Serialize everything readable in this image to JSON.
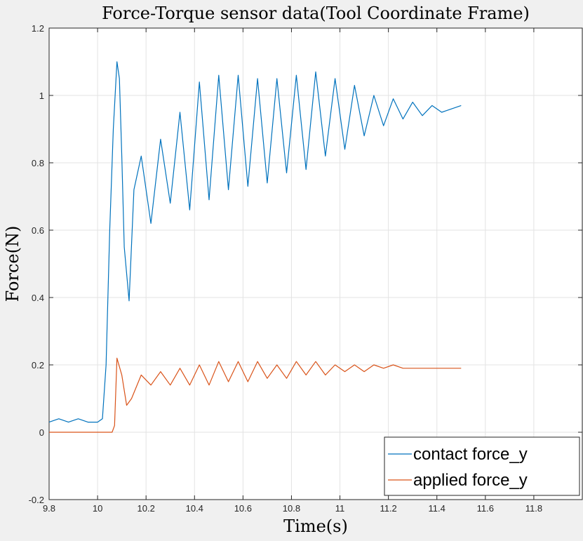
{
  "chart_data": {
    "type": "line",
    "title": "Force-Torque sensor data(Tool Coordinate Frame)",
    "xlabel": "Time(s)",
    "ylabel": "Force(N)",
    "xlim": [
      9.8,
      12.0
    ],
    "ylim": [
      -0.2,
      1.2
    ],
    "xticks": [
      9.8,
      10,
      10.2,
      10.4,
      10.6,
      10.8,
      11,
      11.2,
      11.4,
      11.6,
      11.8
    ],
    "xtick_labels": [
      "9.8",
      "10",
      "10.2",
      "10.4",
      "10.6",
      "10.8",
      "11",
      "11.2",
      "11.4",
      "11.6",
      "11.8"
    ],
    "yticks": [
      -0.2,
      0,
      0.2,
      0.4,
      0.6,
      0.8,
      1,
      1.2
    ],
    "ytick_labels": [
      "-0.2",
      "0",
      "0.2",
      "0.4",
      "0.6",
      "0.8",
      "1",
      "1.2"
    ],
    "grid": true,
    "legend_position": "bottom-right",
    "series": [
      {
        "name": "contact force_y",
        "color": "#0072BD",
        "x": [
          9.8,
          9.84,
          9.88,
          9.92,
          9.96,
          10.0,
          10.02,
          10.035,
          10.05,
          10.065,
          10.08,
          10.09,
          10.1,
          10.11,
          10.13,
          10.15,
          10.18,
          10.22,
          10.26,
          10.3,
          10.34,
          10.38,
          10.42,
          10.46,
          10.5,
          10.54,
          10.58,
          10.62,
          10.66,
          10.7,
          10.74,
          10.78,
          10.82,
          10.86,
          10.9,
          10.94,
          10.98,
          11.02,
          11.06,
          11.1,
          11.14,
          11.18,
          11.22,
          11.26,
          11.3,
          11.34,
          11.38,
          11.42,
          11.46,
          11.5
        ],
        "y": [
          0.03,
          0.04,
          0.03,
          0.04,
          0.03,
          0.03,
          0.04,
          0.2,
          0.6,
          0.9,
          1.1,
          1.05,
          0.82,
          0.55,
          0.39,
          0.72,
          0.82,
          0.62,
          0.87,
          0.68,
          0.95,
          0.66,
          1.04,
          0.69,
          1.06,
          0.72,
          1.06,
          0.73,
          1.05,
          0.74,
          1.05,
          0.77,
          1.06,
          0.78,
          1.07,
          0.82,
          1.05,
          0.84,
          1.03,
          0.88,
          1.0,
          0.91,
          0.99,
          0.93,
          0.98,
          0.94,
          0.97,
          0.95,
          0.96,
          0.97
        ]
      },
      {
        "name": "applied force_y",
        "color": "#D95319",
        "x": [
          9.8,
          9.9,
          10.0,
          10.06,
          10.07,
          10.08,
          10.1,
          10.12,
          10.14,
          10.18,
          10.22,
          10.26,
          10.3,
          10.34,
          10.38,
          10.42,
          10.46,
          10.5,
          10.54,
          10.58,
          10.62,
          10.66,
          10.7,
          10.74,
          10.78,
          10.82,
          10.86,
          10.9,
          10.94,
          10.98,
          11.02,
          11.06,
          11.1,
          11.14,
          11.18,
          11.22,
          11.26,
          11.3,
          11.34,
          11.38,
          11.42,
          11.46,
          11.5
        ],
        "y": [
          0.0,
          0.0,
          0.0,
          0.0,
          0.02,
          0.22,
          0.17,
          0.08,
          0.1,
          0.17,
          0.14,
          0.18,
          0.14,
          0.19,
          0.14,
          0.2,
          0.14,
          0.21,
          0.15,
          0.21,
          0.15,
          0.21,
          0.16,
          0.2,
          0.16,
          0.21,
          0.17,
          0.21,
          0.17,
          0.2,
          0.18,
          0.2,
          0.18,
          0.2,
          0.19,
          0.2,
          0.19,
          0.19,
          0.19,
          0.19,
          0.19,
          0.19,
          0.19
        ]
      }
    ]
  }
}
